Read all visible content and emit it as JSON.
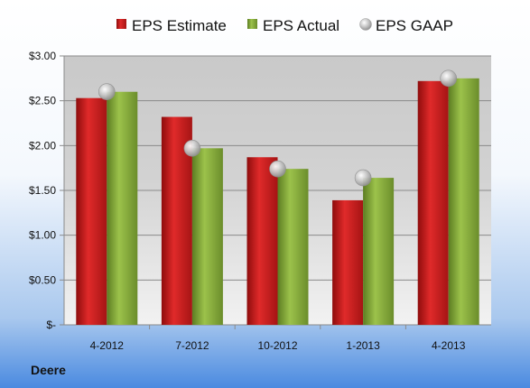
{
  "company": "Deere",
  "colors": {
    "estimate": "#d42020",
    "actual": "#86ad3a",
    "gaap": "#b9b9b9"
  },
  "chart_data": {
    "type": "bar",
    "title": "",
    "xlabel": "",
    "ylabel": "",
    "categories": [
      "4-2012",
      "7-2012",
      "10-2012",
      "1-2013",
      "4-2013"
    ],
    "ylim": [
      0,
      3
    ],
    "yticks": [
      0,
      0.5,
      1,
      1.5,
      2,
      2.5,
      3
    ],
    "ytick_labels": [
      "$-",
      "$0.50",
      "$1.00",
      "$1.50",
      "$2.00",
      "$2.50",
      "$3.00"
    ],
    "grid": true,
    "legend_position": "top",
    "series": [
      {
        "name": "EPS Estimate",
        "type": "bar",
        "values": [
          2.53,
          2.32,
          1.87,
          1.39,
          2.72
        ]
      },
      {
        "name": "EPS Actual",
        "type": "bar",
        "values": [
          2.6,
          1.97,
          1.74,
          1.64,
          2.75
        ]
      },
      {
        "name": "EPS GAAP",
        "type": "scatter",
        "values": [
          2.6,
          1.97,
          1.74,
          1.64,
          2.75
        ]
      }
    ]
  }
}
